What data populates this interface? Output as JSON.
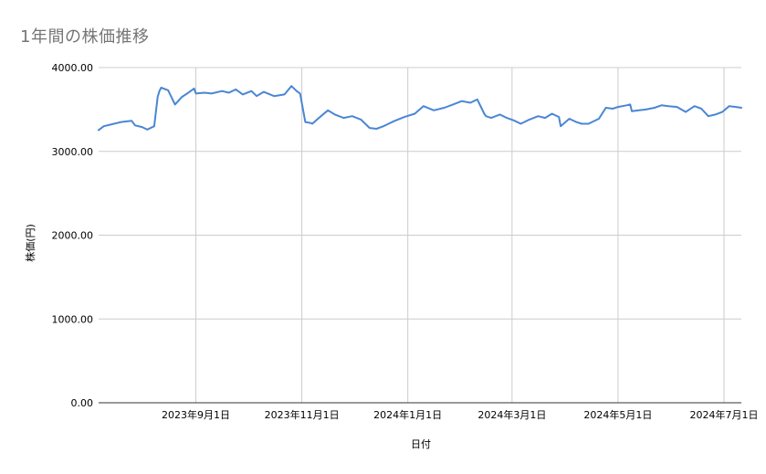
{
  "chart_data": {
    "type": "line",
    "title": "1年間の株価推移",
    "xlabel": "日付",
    "ylabel": "株価(円)",
    "ylim": [
      0,
      4000
    ],
    "xlim": [
      "2023-07-07",
      "2024-07-11"
    ],
    "yticks": [
      "0.00",
      "1000.00",
      "2000.00",
      "3000.00",
      "4000.00"
    ],
    "xticks": [
      {
        "date": "2023-09-01",
        "label": "2023年9月1日"
      },
      {
        "date": "2023-11-01",
        "label": "2023年11月1日"
      },
      {
        "date": "2024-01-01",
        "label": "2024年1月1日"
      },
      {
        "date": "2024-03-01",
        "label": "2024年3月1日"
      },
      {
        "date": "2024-05-01",
        "label": "2024年5月1日"
      },
      {
        "date": "2024-07-01",
        "label": "2024年7月1日"
      }
    ],
    "grid": true,
    "line_color": "#4a86d4",
    "series": [
      {
        "x": [
          "2023-07-07",
          "2023-07-10",
          "2023-07-14",
          "2023-07-20",
          "2023-07-26",
          "2023-07-28",
          "2023-08-01",
          "2023-08-04",
          "2023-08-08",
          "2023-08-10",
          "2023-08-11",
          "2023-08-12",
          "2023-08-16",
          "2023-08-20",
          "2023-08-24",
          "2023-08-27",
          "2023-08-31",
          "2023-09-01",
          "2023-09-06",
          "2023-09-10",
          "2023-09-16",
          "2023-09-20",
          "2023-09-24",
          "2023-09-28",
          "2023-10-03",
          "2023-10-06",
          "2023-10-10",
          "2023-10-16",
          "2023-10-22",
          "2023-10-26",
          "2023-10-29",
          "2023-10-31",
          "2023-11-03",
          "2023-11-06",
          "2023-11-07",
          "2023-11-12",
          "2023-11-16",
          "2023-11-20",
          "2023-11-25",
          "2023-11-30",
          "2023-12-05",
          "2023-12-10",
          "2023-12-14",
          "2023-12-18",
          "2023-12-20",
          "2023-12-24",
          "2023-12-30",
          "2024-01-05",
          "2024-01-10",
          "2024-01-16",
          "2024-01-22",
          "2024-01-27",
          "2024-02-01",
          "2024-02-06",
          "2024-02-10",
          "2024-02-14",
          "2024-02-15",
          "2024-02-18",
          "2024-02-23",
          "2024-02-27",
          "2024-03-02",
          "2024-03-06",
          "2024-03-11",
          "2024-03-16",
          "2024-03-20",
          "2024-03-24",
          "2024-03-28",
          "2024-03-29",
          "2024-04-03",
          "2024-04-07",
          "2024-04-10",
          "2024-04-14",
          "2024-04-20",
          "2024-04-24",
          "2024-04-28",
          "2024-05-01",
          "2024-05-06",
          "2024-05-08",
          "2024-05-09",
          "2024-05-13",
          "2024-05-17",
          "2024-05-22",
          "2024-05-26",
          "2024-05-30",
          "2024-06-04",
          "2024-06-09",
          "2024-06-14",
          "2024-06-18",
          "2024-06-22",
          "2024-06-26",
          "2024-06-30",
          "2024-07-04",
          "2024-07-08",
          "2024-07-11"
        ],
        "values": [
          3255,
          3300,
          3320,
          3350,
          3365,
          3310,
          3290,
          3260,
          3300,
          3650,
          3720,
          3760,
          3730,
          3560,
          3650,
          3690,
          3750,
          3690,
          3700,
          3690,
          3720,
          3700,
          3740,
          3680,
          3720,
          3660,
          3710,
          3660,
          3680,
          3780,
          3720,
          3690,
          3350,
          3340,
          3330,
          3420,
          3490,
          3440,
          3400,
          3420,
          3380,
          3280,
          3270,
          3300,
          3320,
          3360,
          3410,
          3450,
          3540,
          3490,
          3520,
          3560,
          3600,
          3580,
          3620,
          3450,
          3420,
          3400,
          3440,
          3400,
          3370,
          3330,
          3380,
          3420,
          3400,
          3450,
          3410,
          3300,
          3390,
          3350,
          3330,
          3330,
          3390,
          3520,
          3510,
          3530,
          3550,
          3560,
          3480,
          3490,
          3500,
          3520,
          3550,
          3540,
          3530,
          3470,
          3540,
          3510,
          3420,
          3440,
          3470,
          3540,
          3530,
          3520
        ]
      }
    ]
  }
}
